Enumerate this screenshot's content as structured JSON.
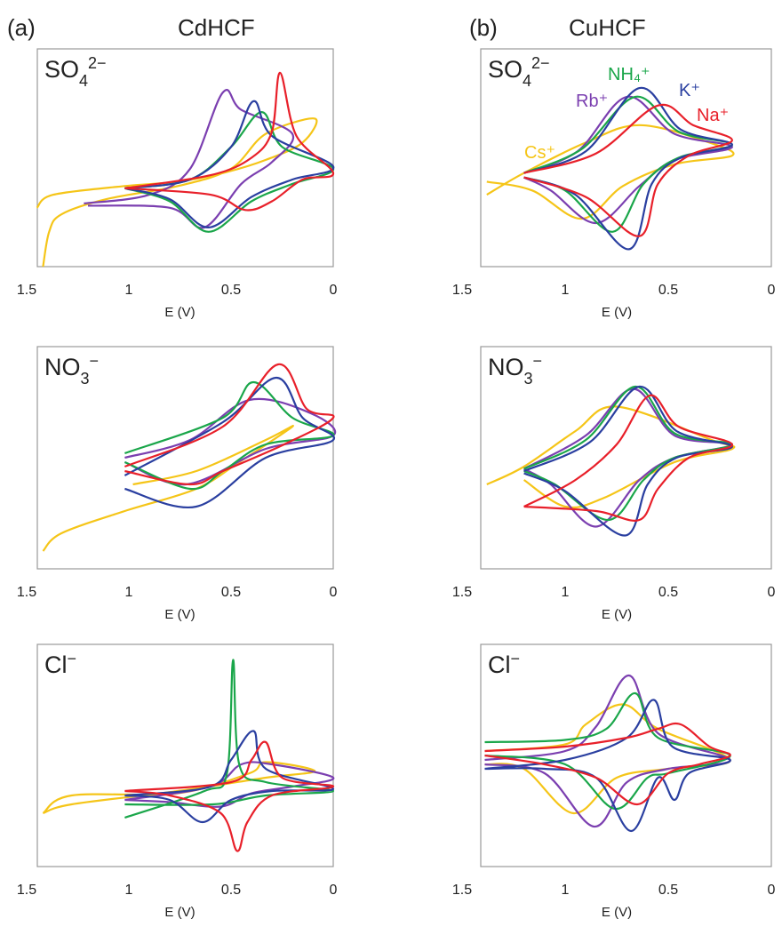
{
  "panels": [
    {
      "label": "(a)",
      "title": "CdHCF"
    },
    {
      "label": "(b)",
      "title": "CuHCF"
    }
  ],
  "chart_data": [
    {
      "type": "line",
      "title": {
        "base": "SO",
        "sub": "4",
        "sup": "2−"
      },
      "xlabel": "E (V)",
      "xlim": [
        1.5,
        0
      ],
      "xticks": [
        1.5,
        1,
        0.5,
        0
      ],
      "ylim": [
        0,
        100
      ],
      "series": [
        {
          "color": "#f5c518",
          "x": [
            1.42,
            1.39,
            1.33,
            1.11,
            0.76,
            0.5,
            0.33,
            0.09,
            0.15,
            0.33,
            0.54,
            0.76,
            1.02,
            1.37,
            1.45
          ],
          "values": [
            0,
            16,
            24,
            31,
            37,
            45,
            61,
            68,
            57,
            49,
            43,
            39,
            37,
            33,
            27
          ]
        },
        {
          "color": "#7b3fb0",
          "x": [
            1.22,
            0.9,
            0.7,
            0.54,
            0.45,
            0.2,
            0.3,
            0.45,
            0.63,
            0.8,
            1.2
          ],
          "values": [
            29,
            33,
            45,
            80,
            72,
            61,
            48,
            38,
            18,
            27,
            28
          ]
        },
        {
          "color": "#1aa64a",
          "x": [
            1.02,
            0.7,
            0.5,
            0.35,
            0.25,
            0,
            0.2,
            0.4,
            0.61,
            0.8,
            1.02
          ],
          "values": [
            36,
            40,
            55,
            71,
            55,
            45,
            38,
            30,
            16,
            30,
            36
          ]
        },
        {
          "color": "#2a3fa0",
          "x": [
            1.02,
            0.7,
            0.5,
            0.39,
            0.3,
            0,
            0.2,
            0.4,
            0.61,
            0.8,
            1.02
          ],
          "values": [
            36,
            40,
            55,
            76,
            60,
            46,
            40,
            32,
            18,
            31,
            36
          ]
        },
        {
          "color": "#e8202a",
          "x": [
            1.02,
            0.6,
            0.4,
            0.3,
            0.26,
            0.18,
            0,
            0.15,
            0.3,
            0.43,
            0.6,
            1.02
          ],
          "values": [
            36,
            42,
            50,
            62,
            89,
            60,
            43,
            40,
            30,
            26,
            33,
            36
          ]
        }
      ]
    },
    {
      "type": "line",
      "title": {
        "base": "NO",
        "sub": "3",
        "sup": "−"
      },
      "xlabel": "E (V)",
      "xlim": [
        1.5,
        0
      ],
      "xticks": [
        1.5,
        1,
        0.5,
        0
      ],
      "ylim": [
        0,
        100
      ],
      "series": [
        {
          "color": "#f5c518",
          "x": [
            1.42,
            1.33,
            1.02,
            0.67,
            0.46,
            0.2,
            0.33,
            0.67,
            0.98
          ],
          "values": [
            8,
            16,
            26,
            36,
            48,
            64,
            58,
            44,
            38
          ]
        },
        {
          "color": "#7b3fb0",
          "x": [
            1.02,
            0.7,
            0.41,
            0.11,
            0,
            0.33,
            0.72,
            1.02
          ],
          "values": [
            50,
            58,
            76,
            70,
            60,
            54,
            38,
            48
          ]
        },
        {
          "color": "#1aa64a",
          "x": [
            1.02,
            0.54,
            0.39,
            0.2,
            0,
            0.33,
            0.54,
            0.7,
            1.02
          ],
          "values": [
            52,
            68,
            84,
            68,
            60,
            56,
            44,
            36,
            48
          ]
        },
        {
          "color": "#2a3fa0",
          "x": [
            1.02,
            0.54,
            0.28,
            0.15,
            0,
            0.33,
            0.67,
            1.02
          ],
          "values": [
            42,
            66,
            86,
            68,
            58,
            50,
            28,
            36
          ]
        },
        {
          "color": "#e8202a",
          "x": [
            1.02,
            0.54,
            0.27,
            0.13,
            0,
            0.24,
            0.54,
            0.7,
            1.02
          ],
          "values": [
            46,
            64,
            92,
            72,
            68,
            56,
            44,
            38,
            44
          ]
        }
      ]
    },
    {
      "type": "line",
      "title": {
        "base": "Cl",
        "sup": "−"
      },
      "xlabel": "E (V)",
      "xlim": [
        1.5,
        0
      ],
      "xticks": [
        1.5,
        1,
        0.5,
        0
      ],
      "ylim": [
        0,
        100
      ],
      "series": [
        {
          "color": "#f5c518",
          "x": [
            1.42,
            1.28,
            0.76,
            0.41,
            0.33,
            0.09,
            0.33,
            0.76,
            1.28,
            1.42
          ],
          "values": [
            24,
            32,
            33,
            42,
            47,
            43,
            40,
            34,
            28,
            24
          ]
        },
        {
          "color": "#7b3fb0",
          "x": [
            1.02,
            0.6,
            0.45,
            0.3,
            0,
            0.2,
            0.4,
            0.55,
            0.8,
            1.02
          ],
          "values": [
            30,
            36,
            46,
            46,
            40,
            36,
            33,
            27,
            29,
            30
          ]
        },
        {
          "color": "#1aa64a",
          "x": [
            1.02,
            0.63,
            0.52,
            0.49,
            0.46,
            0.33,
            0,
            0.33,
            0.59,
            1.02
          ],
          "values": [
            22,
            34,
            42,
            93,
            46,
            38,
            34,
            32,
            28,
            28
          ]
        },
        {
          "color": "#2a3fa0",
          "x": [
            1.02,
            0.6,
            0.5,
            0.39,
            0.33,
            0,
            0.3,
            0.5,
            0.64,
            0.8,
            1.02
          ],
          "values": [
            32,
            36,
            48,
            61,
            44,
            35,
            34,
            30,
            20,
            30,
            32
          ]
        },
        {
          "color": "#e8202a",
          "x": [
            1.02,
            0.5,
            0.4,
            0.33,
            0.25,
            0,
            0.3,
            0.42,
            0.47,
            0.55,
            0.8,
            1.02
          ],
          "values": [
            34,
            38,
            48,
            56,
            40,
            36,
            32,
            20,
            7,
            24,
            32,
            34
          ]
        }
      ]
    },
    {
      "type": "line",
      "title": {
        "base": "SO",
        "sub": "4",
        "sup": "2−"
      },
      "xlabel": "E (V)",
      "xlim": [
        1.5,
        0
      ],
      "xticks": [
        1.5,
        1,
        0.5,
        0
      ],
      "ylim": [
        0,
        100
      ],
      "series": [
        {
          "name": "Cs⁺",
          "color": "#f5c518",
          "x": [
            1.38,
            1.2,
            0.9,
            0.64,
            0.3,
            0.19,
            0.47,
            0.72,
            0.92,
            1.16,
            1.38
          ],
          "values": [
            33,
            43,
            57,
            65,
            57,
            51,
            47,
            37,
            22,
            35,
            39
          ]
        },
        {
          "name": "Rb⁺",
          "color": "#7b3fb0",
          "x": [
            1.2,
            0.94,
            0.7,
            0.47,
            0.19,
            0.47,
            0.64,
            0.85,
            1.07,
            1.2
          ],
          "values": [
            43,
            53,
            78,
            61,
            55,
            49,
            37,
            20,
            35,
            41
          ]
        },
        {
          "name": "NH₄⁺",
          "color": "#1aa64a",
          "x": [
            1.2,
            0.92,
            0.66,
            0.45,
            0.19,
            0.45,
            0.62,
            0.77,
            1.0,
            1.2
          ],
          "values": [
            43,
            54,
            78,
            62,
            56,
            50,
            38,
            16,
            35,
            41
          ]
        },
        {
          "name": "K⁺",
          "color": "#2a3fa0",
          "x": [
            1.2,
            0.9,
            0.64,
            0.44,
            0.19,
            0.44,
            0.58,
            0.69,
            0.95,
            1.2
          ],
          "values": [
            43,
            53,
            82,
            63,
            56,
            50,
            38,
            8,
            33,
            41
          ]
        },
        {
          "name": "Na⁺",
          "color": "#e8202a",
          "x": [
            1.2,
            0.85,
            0.55,
            0.38,
            0.19,
            0.4,
            0.55,
            0.64,
            0.9,
            1.2
          ],
          "values": [
            43,
            52,
            74,
            65,
            58,
            51,
            38,
            14,
            32,
            41
          ]
        }
      ]
    },
    {
      "type": "line",
      "title": {
        "base": "NO",
        "sub": "3",
        "sup": "−"
      },
      "xlabel": "E (V)",
      "xlim": [
        1.5,
        0
      ],
      "xticks": [
        1.5,
        1,
        0.5,
        0
      ],
      "ylim": [
        0,
        100
      ],
      "series": [
        {
          "color": "#f5c518",
          "x": [
            1.38,
            1.2,
            0.95,
            0.75,
            0.29,
            0.19,
            0.47,
            0.81,
            1.0,
            1.2
          ],
          "values": [
            38,
            46,
            62,
            73,
            58,
            54,
            48,
            32,
            28,
            40
          ]
        },
        {
          "color": "#7b3fb0",
          "x": [
            1.2,
            0.9,
            0.67,
            0.47,
            0.19,
            0.47,
            0.64,
            0.85,
            1.07,
            1.2
          ],
          "values": [
            45,
            60,
            81,
            60,
            56,
            50,
            40,
            19,
            38,
            45
          ]
        },
        {
          "color": "#1aa64a",
          "x": [
            1.2,
            0.9,
            0.66,
            0.47,
            0.19,
            0.47,
            0.62,
            0.79,
            1.05,
            1.2
          ],
          "values": [
            45,
            58,
            82,
            61,
            56,
            50,
            40,
            22,
            38,
            44
          ]
        },
        {
          "color": "#2a3fa0",
          "x": [
            1.2,
            0.88,
            0.64,
            0.46,
            0.19,
            0.46,
            0.6,
            0.71,
            1.0,
            1.2
          ],
          "values": [
            44,
            57,
            82,
            62,
            55,
            50,
            38,
            15,
            35,
            43
          ]
        },
        {
          "color": "#e8202a",
          "x": [
            1.2,
            0.95,
            0.75,
            0.59,
            0.45,
            0.19,
            0.4,
            0.55,
            0.64,
            0.85,
            1.2
          ],
          "values": [
            28,
            40,
            56,
            78,
            64,
            56,
            50,
            36,
            22,
            26,
            28
          ]
        }
      ]
    },
    {
      "type": "line",
      "title": {
        "base": "Cl",
        "sup": "−"
      },
      "xlabel": "E (V)",
      "xlim": [
        1.5,
        0
      ],
      "xticks": [
        1.5,
        1,
        0.5,
        0
      ],
      "ylim": [
        0,
        100
      ],
      "series": [
        {
          "color": "#f5c518",
          "x": [
            1.39,
            1.0,
            0.9,
            0.72,
            0.55,
            0.2,
            0.5,
            0.75,
            0.96,
            1.2,
            1.39
          ],
          "values": [
            52,
            55,
            64,
            73,
            62,
            48,
            44,
            40,
            24,
            44,
            46
          ]
        },
        {
          "color": "#7b3fb0",
          "x": [
            1.39,
            1.0,
            0.85,
            0.69,
            0.55,
            0.2,
            0.5,
            0.7,
            0.86,
            1.1,
            1.39
          ],
          "values": [
            48,
            52,
            63,
            86,
            60,
            48,
            44,
            38,
            18,
            42,
            46
          ]
        },
        {
          "color": "#1aa64a",
          "x": [
            1.39,
            1.0,
            0.8,
            0.66,
            0.55,
            0.2,
            0.5,
            0.6,
            0.76,
            1.0,
            1.39
          ],
          "values": [
            56,
            57,
            62,
            78,
            58,
            50,
            42,
            40,
            26,
            46,
            50
          ]
        },
        {
          "color": "#2a3fa0",
          "x": [
            1.39,
            1.0,
            0.7,
            0.57,
            0.48,
            0.2,
            0.4,
            0.47,
            0.55,
            0.68,
            0.85,
            1.1,
            1.39
          ],
          "values": [
            44,
            48,
            58,
            75,
            54,
            48,
            42,
            30,
            40,
            16,
            40,
            44,
            44
          ]
        },
        {
          "color": "#e8202a",
          "x": [
            1.39,
            1.0,
            0.7,
            0.55,
            0.44,
            0.3,
            0.2,
            0.35,
            0.5,
            0.65,
            0.85,
            1.1,
            1.39
          ],
          "values": [
            52,
            54,
            58,
            62,
            64,
            54,
            50,
            46,
            42,
            28,
            40,
            46,
            50
          ]
        }
      ]
    }
  ]
}
